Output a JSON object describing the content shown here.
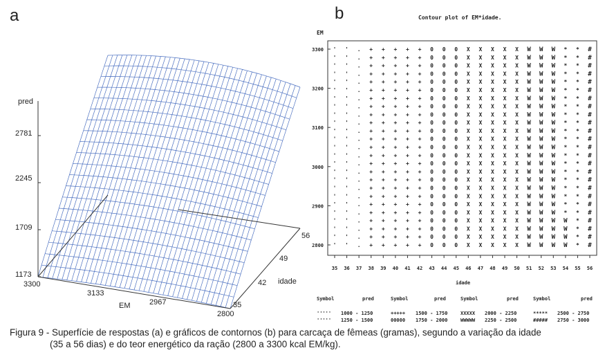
{
  "caption": {
    "line1": "Figura 9 - Superfície de respostas (a) e gráficos de contornos (b) para carcaça de fêmeas (gramas), segundo a variação da idade",
    "line2": "(35 a 56 dias) e do teor energético da ração (2800 a 3300 kcal EM/kg)."
  },
  "colors": {
    "mesh": "#4a6fc0",
    "axis": "#333333",
    "text": "#222222"
  },
  "chart_data": [
    {
      "panel_label": "a",
      "type": "surface",
      "zlabel": "pred",
      "xlabel": "EM",
      "ylabel": "idade",
      "z_ticks": [
        "1173",
        "1709",
        "2245",
        "2781"
      ],
      "em_ticks": [
        "3300",
        "3133",
        "2967",
        "2800"
      ],
      "idade_ticks": [
        "35",
        "42",
        "49",
        "56"
      ],
      "em_range": [
        2800,
        3300
      ],
      "idade_range": [
        35,
        56
      ],
      "z_range": [
        1173,
        2781
      ],
      "surface": {
        "idade_min_pred": 1173,
        "idade_max_pred": 2781,
        "em_effect": "small, slight curvature"
      }
    },
    {
      "panel_label": "b",
      "type": "contour-symbol-plot",
      "title": "Contour plot of EM*idade.",
      "ylabel": "EM",
      "xlabel": "idade",
      "y_ticks": [
        "3300",
        "3200",
        "3100",
        "3000",
        "2900",
        "2800"
      ],
      "x_ticks": [
        "35",
        "36",
        "37",
        "38",
        "39",
        "40",
        "41",
        "42",
        "43",
        "44",
        "45",
        "46",
        "47",
        "48",
        "49",
        "50",
        "51",
        "52",
        "53",
        "54",
        "55",
        "56"
      ],
      "x_range": [
        35,
        56
      ],
      "y_range": [
        2790,
        3310
      ],
      "column_symbols": [
        "'",
        "'",
        ".",
        "+",
        "+",
        "+",
        "+",
        "+",
        "0",
        "0",
        "0",
        "X",
        "X",
        "X",
        "X",
        "X",
        "W",
        "W",
        "W",
        "*",
        "*",
        "#"
      ],
      "legend_headers": [
        "Symbol",
        "pred",
        "Symbol",
        "pred",
        "Symbol",
        "pred",
        "Symbol",
        "pred"
      ],
      "legend": [
        {
          "symbol": "'''''",
          "range": "1000 - 1250"
        },
        {
          "symbol": "'''''",
          "range": "1250 - 1500"
        },
        {
          "symbol": "+++++",
          "range": "1500 - 1750"
        },
        {
          "symbol": "00000",
          "range": "1750 - 2000"
        },
        {
          "symbol": "XXXXX",
          "range": "2000 - 2250"
        },
        {
          "symbol": "WWWWW",
          "range": "2250 - 2500"
        },
        {
          "symbol": "*****",
          "range": "2500 - 2750"
        },
        {
          "symbol": "#####",
          "range": "2750 - 3000"
        }
      ]
    }
  ]
}
